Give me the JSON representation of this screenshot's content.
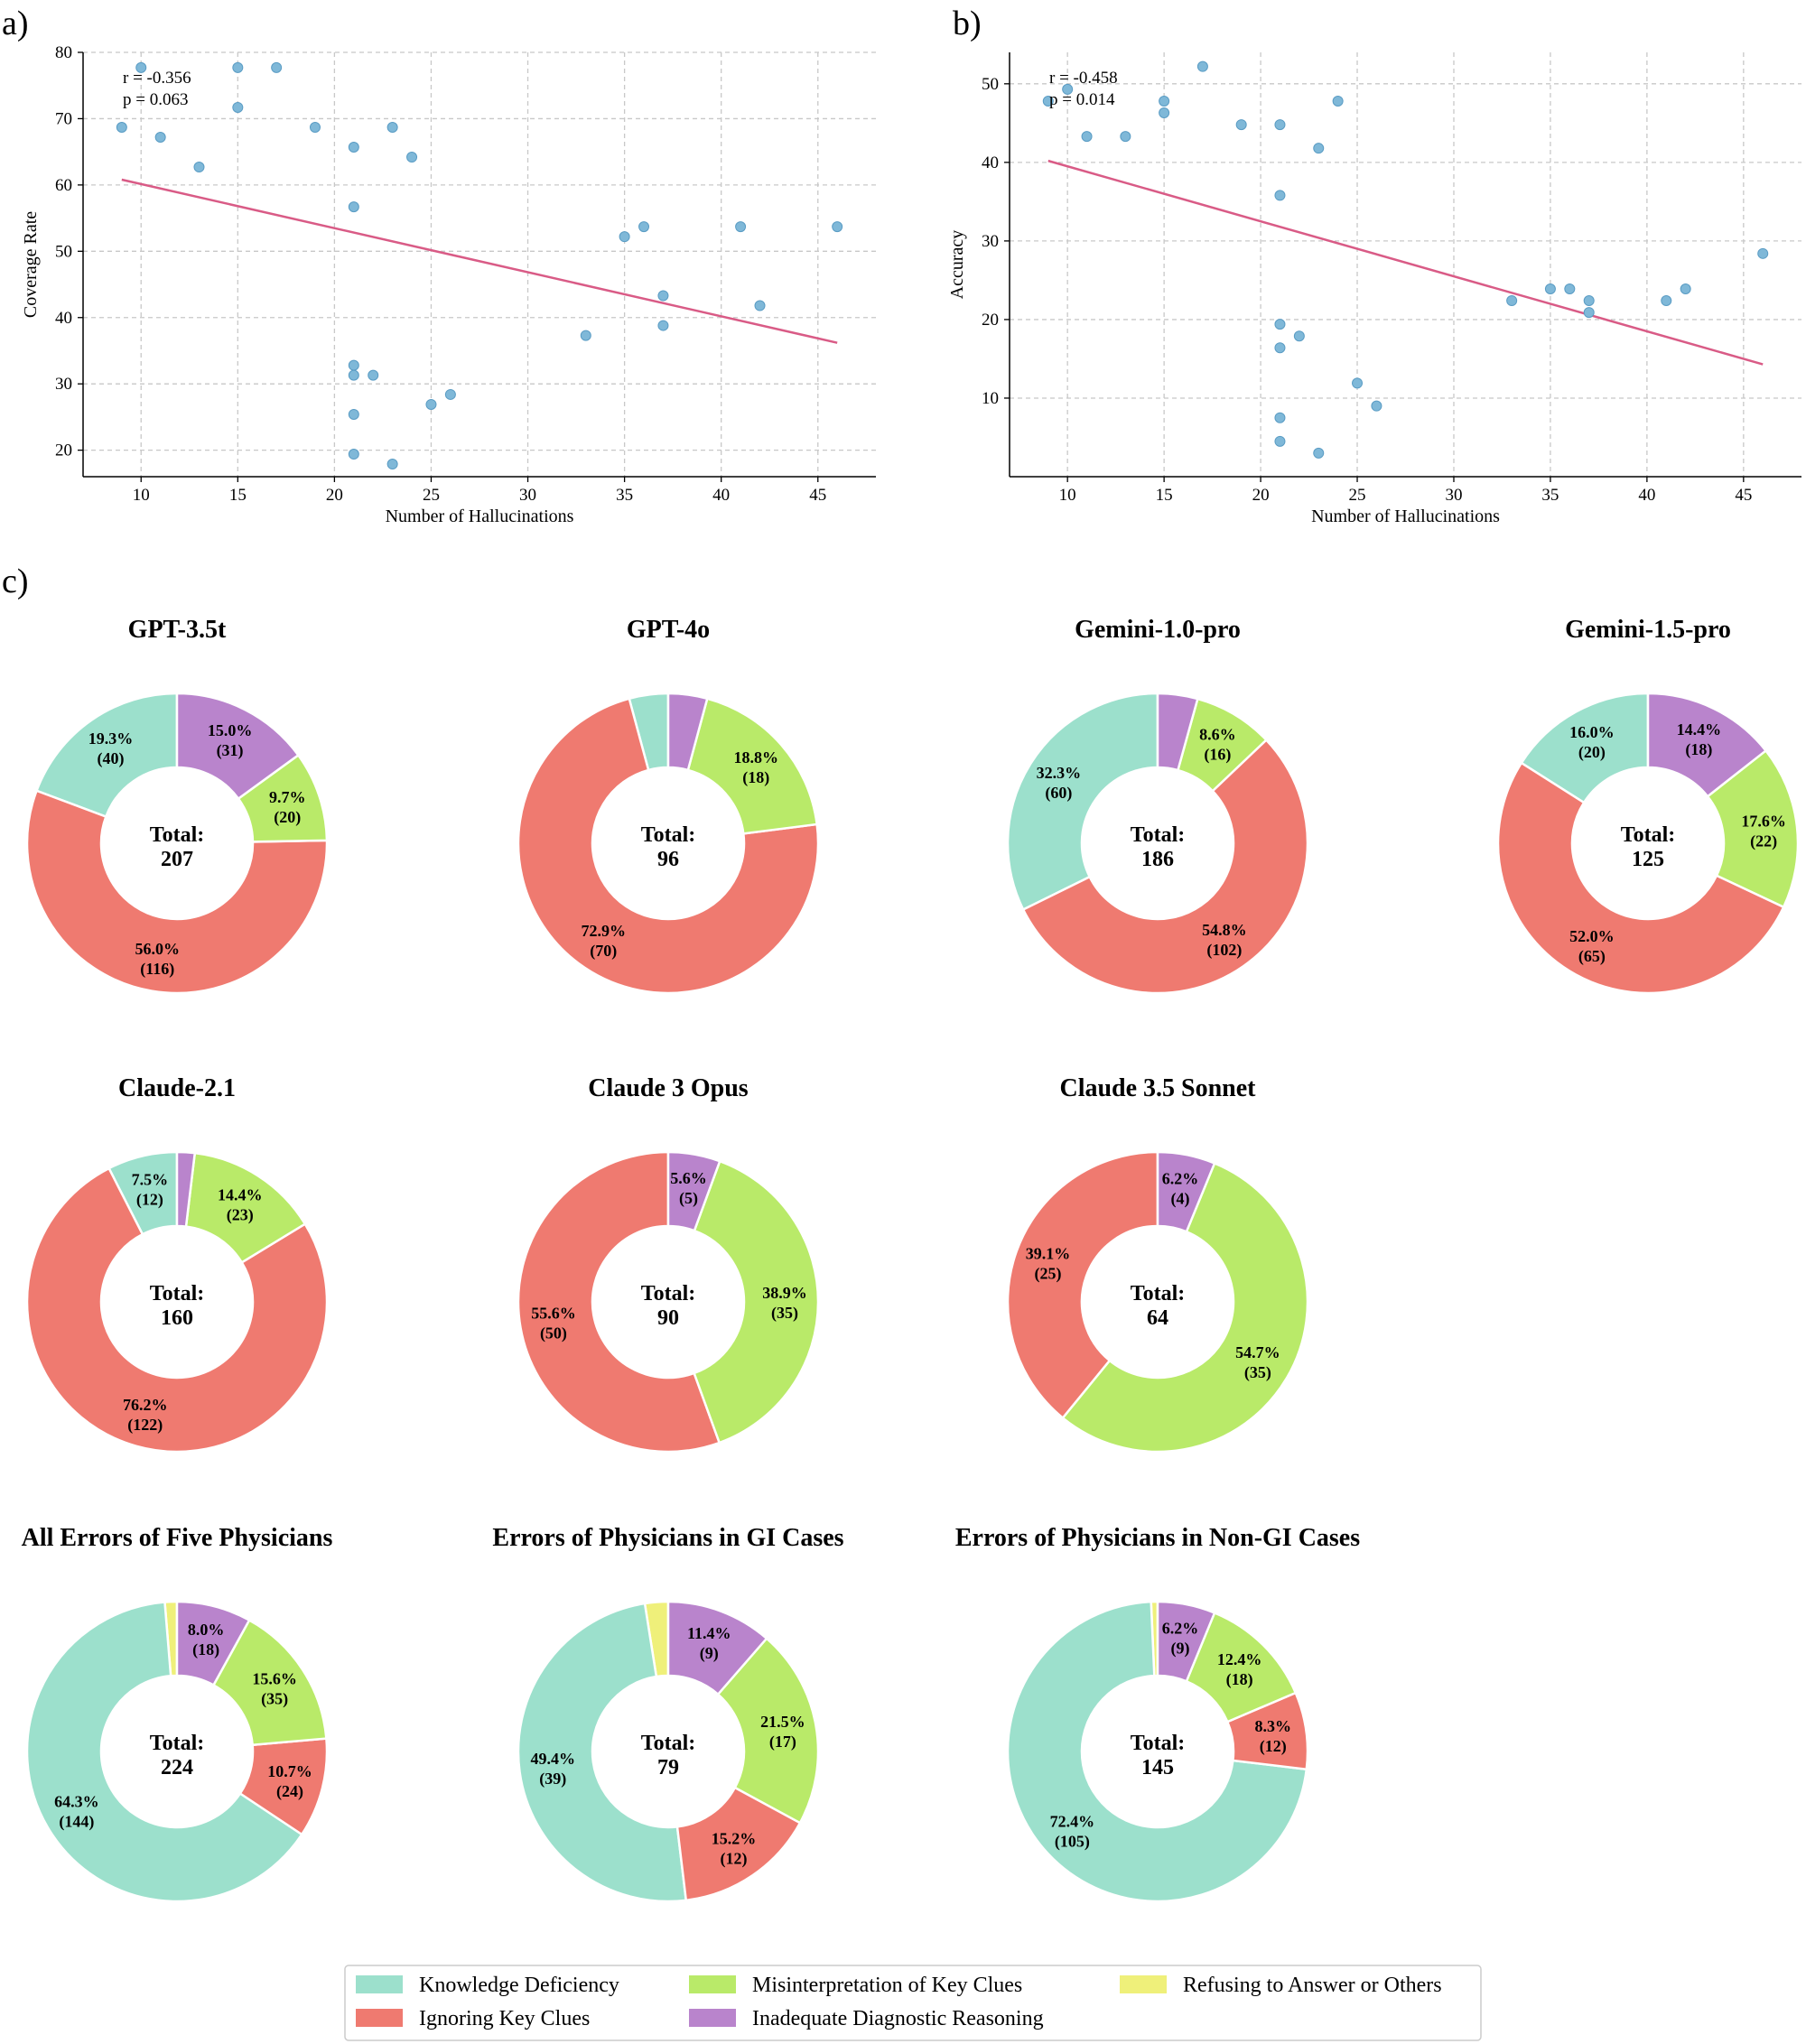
{
  "panel_labels": {
    "a": "a)",
    "b": "b)",
    "c": "c)"
  },
  "colors": {
    "Knowledge Deficiency": "#9ce0cc",
    "Ignoring Key Clues": "#ef7a70",
    "Misinterpretation of Key Clues": "#b9ea69",
    "Inadequate Diagnostic Reasoning": "#b984cc",
    "Refusing to Answer or Others": "#eff07a",
    "scatter_point": "#7fb8d8",
    "scatter_edge": "#5a9cc4",
    "trendline": "#d95b86",
    "grid": "#c8c8c8"
  },
  "chart_data": [
    {
      "id": "a",
      "type": "scatter",
      "title": "",
      "xlabel": "Number of Hallucinations",
      "ylabel": "Coverage Rate",
      "xlim": [
        7,
        48
      ],
      "ylim": [
        16,
        80
      ],
      "xticks": [
        10,
        15,
        20,
        25,
        30,
        35,
        40,
        45
      ],
      "yticks": [
        20,
        30,
        40,
        50,
        60,
        70,
        80
      ],
      "grid": true,
      "annotations": [
        "r = -0.356",
        "p = 0.063"
      ],
      "trendline": {
        "x": [
          9,
          46
        ],
        "y": [
          60.8,
          36.2
        ]
      },
      "points": [
        [
          9,
          68.7
        ],
        [
          10,
          77.7
        ],
        [
          11,
          67.2
        ],
        [
          13,
          62.7
        ],
        [
          15,
          77.7
        ],
        [
          15,
          71.7
        ],
        [
          17,
          77.7
        ],
        [
          19,
          68.7
        ],
        [
          21,
          65.7
        ],
        [
          21,
          56.7
        ],
        [
          21,
          32.8
        ],
        [
          21,
          31.3
        ],
        [
          21,
          25.4
        ],
        [
          21,
          19.4
        ],
        [
          22,
          31.3
        ],
        [
          23,
          68.7
        ],
        [
          23,
          17.9
        ],
        [
          24,
          64.2
        ],
        [
          25,
          26.9
        ],
        [
          26,
          28.4
        ],
        [
          33,
          37.3
        ],
        [
          35,
          52.2
        ],
        [
          36,
          53.7
        ],
        [
          37,
          43.3
        ],
        [
          37,
          38.8
        ],
        [
          41,
          53.7
        ],
        [
          42,
          41.8
        ],
        [
          46,
          53.7
        ]
      ]
    },
    {
      "id": "b",
      "type": "scatter",
      "title": "",
      "xlabel": "Number of Hallucinations",
      "ylabel": "Accuracy",
      "xlim": [
        7,
        48
      ],
      "ylim": [
        0,
        54
      ],
      "xticks": [
        10,
        15,
        20,
        25,
        30,
        35,
        40,
        45
      ],
      "yticks": [
        10,
        20,
        30,
        40,
        50
      ],
      "grid": true,
      "annotations": [
        "r = -0.458",
        "p = 0.014"
      ],
      "trendline": {
        "x": [
          9,
          46
        ],
        "y": [
          40.2,
          14.3
        ]
      },
      "points": [
        [
          9,
          47.8
        ],
        [
          10,
          49.3
        ],
        [
          11,
          43.3
        ],
        [
          13,
          43.3
        ],
        [
          15,
          47.8
        ],
        [
          15,
          46.3
        ],
        [
          17,
          52.2
        ],
        [
          19,
          44.8
        ],
        [
          21,
          44.8
        ],
        [
          21,
          35.8
        ],
        [
          21,
          19.4
        ],
        [
          21,
          16.4
        ],
        [
          21,
          7.5
        ],
        [
          21,
          4.5
        ],
        [
          22,
          17.9
        ],
        [
          23,
          41.8
        ],
        [
          23,
          3.0
        ],
        [
          24,
          47.8
        ],
        [
          25,
          11.9
        ],
        [
          26,
          9.0
        ],
        [
          33,
          22.4
        ],
        [
          35,
          23.9
        ],
        [
          36,
          23.9
        ],
        [
          37,
          22.4
        ],
        [
          37,
          20.9
        ],
        [
          41,
          22.4
        ],
        [
          42,
          23.9
        ],
        [
          46,
          28.4
        ]
      ]
    },
    {
      "id": "c",
      "type": "donut",
      "center_label": "Total:",
      "categories": [
        "Knowledge Deficiency",
        "Misinterpretation of Key Clues",
        "Refusing to Answer or Others",
        "Ignoring Key Clues",
        "Inadequate Diagnostic Reasoning"
      ],
      "legend_placement": "bottom-center",
      "charts": [
        {
          "title": "GPT-3.5t",
          "total": "207",
          "slices": [
            {
              "category": "Knowledge Deficiency",
              "pct": 19.3,
              "count": 40,
              "label": "19.3%",
              "count_label": "(40)"
            },
            {
              "category": "Ignoring Key Clues",
              "pct": 56.0,
              "count": 116,
              "label": "56.0%",
              "count_label": "(116)"
            },
            {
              "category": "Misinterpretation of Key Clues",
              "pct": 9.7,
              "count": 20,
              "label": "9.7%",
              "count_label": "(20)"
            },
            {
              "category": "Inadequate Diagnostic Reasoning",
              "pct": 15.0,
              "count": 31,
              "label": "15.0%",
              "count_label": "(31)"
            }
          ]
        },
        {
          "title": "GPT-4o",
          "total": "96",
          "slices": [
            {
              "category": "Knowledge Deficiency",
              "pct": 4.2,
              "count": 4,
              "label": "",
              "count_label": ""
            },
            {
              "category": "Ignoring Key Clues",
              "pct": 72.9,
              "count": 70,
              "label": "72.9%",
              "count_label": "(70)"
            },
            {
              "category": "Misinterpretation of Key Clues",
              "pct": 18.8,
              "count": 18,
              "label": "18.8%",
              "count_label": "(18)"
            },
            {
              "category": "Inadequate Diagnostic Reasoning",
              "pct": 4.2,
              "count": 4,
              "label": "",
              "count_label": ""
            }
          ]
        },
        {
          "title": "Gemini-1.0-pro",
          "total": "186",
          "slices": [
            {
              "category": "Knowledge Deficiency",
              "pct": 32.3,
              "count": 60,
              "label": "32.3%",
              "count_label": "(60)"
            },
            {
              "category": "Ignoring Key Clues",
              "pct": 54.8,
              "count": 102,
              "label": "54.8%",
              "count_label": "(102)"
            },
            {
              "category": "Misinterpretation of Key Clues",
              "pct": 8.6,
              "count": 16,
              "label": "8.6%",
              "count_label": "(16)"
            },
            {
              "category": "Inadequate Diagnostic Reasoning",
              "pct": 4.3,
              "count": 8,
              "label": "",
              "count_label": ""
            }
          ]
        },
        {
          "title": "Gemini-1.5-pro",
          "total": "125",
          "slices": [
            {
              "category": "Knowledge Deficiency",
              "pct": 16.0,
              "count": 20,
              "label": "16.0%",
              "count_label": "(20)"
            },
            {
              "category": "Ignoring Key Clues",
              "pct": 52.0,
              "count": 65,
              "label": "52.0%",
              "count_label": "(65)"
            },
            {
              "category": "Misinterpretation of Key Clues",
              "pct": 17.6,
              "count": 22,
              "label": "17.6%",
              "count_label": "(22)"
            },
            {
              "category": "Inadequate Diagnostic Reasoning",
              "pct": 14.4,
              "count": 18,
              "label": "14.4%",
              "count_label": "(18)"
            }
          ]
        },
        {
          "title": "Claude-2.1",
          "total": "160",
          "slices": [
            {
              "category": "Knowledge Deficiency",
              "pct": 7.5,
              "count": 12,
              "label": "7.5%",
              "count_label": "(12)"
            },
            {
              "category": "Ignoring Key Clues",
              "pct": 76.2,
              "count": 122,
              "label": "76.2%",
              "count_label": "(122)"
            },
            {
              "category": "Misinterpretation of Key Clues",
              "pct": 14.4,
              "count": 23,
              "label": "14.4%",
              "count_label": "(23)"
            },
            {
              "category": "Inadequate Diagnostic Reasoning",
              "pct": 1.9,
              "count": 3,
              "label": "",
              "count_label": ""
            }
          ]
        },
        {
          "title": "Claude 3 Opus",
          "total": "90",
          "slices": [
            {
              "category": "Ignoring Key Clues",
              "pct": 55.6,
              "count": 50,
              "label": "55.6%",
              "count_label": "(50)"
            },
            {
              "category": "Misinterpretation of Key Clues",
              "pct": 38.9,
              "count": 35,
              "label": "38.9%",
              "count_label": "(35)"
            },
            {
              "category": "Inadequate Diagnostic Reasoning",
              "pct": 5.6,
              "count": 5,
              "label": "5.6%",
              "count_label": "(5)"
            }
          ]
        },
        {
          "title": "Claude 3.5 Sonnet",
          "total": "64",
          "slices": [
            {
              "category": "Ignoring Key Clues",
              "pct": 39.1,
              "count": 25,
              "label": "39.1%",
              "count_label": "(25)"
            },
            {
              "category": "Misinterpretation of Key Clues",
              "pct": 54.7,
              "count": 35,
              "label": "54.7%",
              "count_label": "(35)"
            },
            {
              "category": "Inadequate Diagnostic Reasoning",
              "pct": 6.2,
              "count": 4,
              "label": "6.2%",
              "count_label": "(4)"
            }
          ]
        },
        {
          "title": "All Errors of Five Physicians",
          "total": "224",
          "slices": [
            {
              "category": "Knowledge Deficiency",
              "pct": 64.3,
              "count": 144,
              "label": "64.3%",
              "count_label": "(144)"
            },
            {
              "category": "Ignoring Key Clues",
              "pct": 10.7,
              "count": 24,
              "label": "10.7%",
              "count_label": "(24)"
            },
            {
              "category": "Misinterpretation of Key Clues",
              "pct": 15.6,
              "count": 35,
              "label": "15.6%",
              "count_label": "(35)"
            },
            {
              "category": "Inadequate Diagnostic Reasoning",
              "pct": 8.0,
              "count": 18,
              "label": "8.0%",
              "count_label": "(18)"
            },
            {
              "category": "Refusing to Answer or Others",
              "pct": 1.3,
              "count": 3,
              "label": "",
              "count_label": ""
            }
          ]
        },
        {
          "title": "Errors of Physicians in GI Cases",
          "total": "79",
          "slices": [
            {
              "category": "Knowledge Deficiency",
              "pct": 49.4,
              "count": 39,
              "label": "49.4%",
              "count_label": "(39)"
            },
            {
              "category": "Ignoring Key Clues",
              "pct": 15.2,
              "count": 12,
              "label": "15.2%",
              "count_label": "(12)"
            },
            {
              "category": "Misinterpretation of Key Clues",
              "pct": 21.5,
              "count": 17,
              "label": "21.5%",
              "count_label": "(17)"
            },
            {
              "category": "Inadequate Diagnostic Reasoning",
              "pct": 11.4,
              "count": 9,
              "label": "11.4%",
              "count_label": "(9)"
            },
            {
              "category": "Refusing to Answer or Others",
              "pct": 2.5,
              "count": 2,
              "label": "",
              "count_label": ""
            }
          ]
        },
        {
          "title": "Errors of Physicians in Non-GI Cases",
          "total": "145",
          "slices": [
            {
              "category": "Knowledge Deficiency",
              "pct": 72.4,
              "count": 105,
              "label": "72.4%",
              "count_label": "(105)"
            },
            {
              "category": "Ignoring Key Clues",
              "pct": 8.3,
              "count": 12,
              "label": "8.3%",
              "count_label": "(12)"
            },
            {
              "category": "Misinterpretation of Key Clues",
              "pct": 12.4,
              "count": 18,
              "label": "12.4%",
              "count_label": "(18)"
            },
            {
              "category": "Inadequate Diagnostic Reasoning",
              "pct": 6.2,
              "count": 9,
              "label": "6.2%",
              "count_label": "(9)"
            },
            {
              "category": "Refusing to Answer or Others",
              "pct": 0.7,
              "count": 1,
              "label": "",
              "count_label": ""
            }
          ]
        }
      ]
    }
  ]
}
